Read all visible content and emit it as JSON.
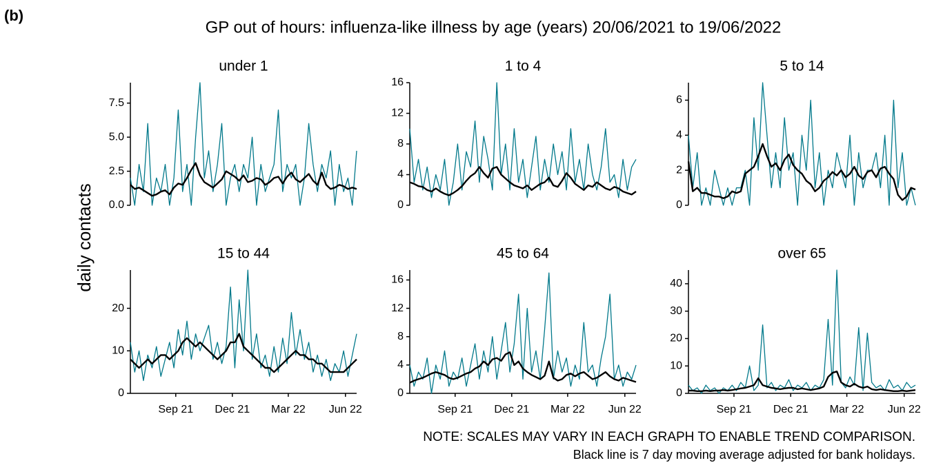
{
  "label": "(b)",
  "title": "GP out of hours: influenza-like illness by age (years) 20/06/2021 to 19/06/2022",
  "y_label": "daily contacts",
  "notes": [
    "NOTE: SCALES MAY VARY IN EACH GRAPH TO ENABLE TREND COMPARISON.",
    "Black line is 7 day moving average adjusted for bank holidays."
  ],
  "chart_data": [
    {
      "type": "line",
      "title": "under 1",
      "x": [
        0,
        7,
        14,
        21,
        28,
        35,
        42,
        49,
        56,
        63,
        70,
        77,
        84,
        91,
        98,
        105,
        112,
        119,
        126,
        133,
        140,
        147,
        154,
        161,
        168,
        175,
        182,
        189,
        196,
        203,
        210,
        217,
        224,
        231,
        238,
        245,
        252,
        259,
        266,
        273,
        280,
        287,
        294,
        301,
        308,
        315,
        322,
        329,
        336,
        343,
        350,
        357,
        364
      ],
      "xlim": [
        0,
        364
      ],
      "ylim": [
        0,
        9
      ],
      "yticks": [
        {
          "value": 0,
          "label": "0.0"
        },
        2.5,
        {
          "value": 5,
          "label": "5.0"
        },
        7.5
      ],
      "series": [
        {
          "color": "#00788a",
          "values": [
            2,
            0,
            3,
            1,
            6,
            0,
            2,
            1,
            3,
            0,
            2,
            7,
            1,
            3,
            0,
            5,
            9,
            2,
            4,
            1,
            3,
            6,
            0,
            2,
            3,
            1,
            3,
            2,
            5,
            0,
            3,
            1,
            2,
            3,
            7,
            1,
            3,
            2,
            3,
            0,
            2,
            6,
            3,
            1,
            3,
            2,
            4,
            0,
            3,
            1,
            2,
            0,
            4
          ]
        },
        {
          "color": "#000000",
          "values": [
            1.5,
            1.2,
            1.3,
            1.1,
            0.9,
            0.7,
            0.8,
            1.0,
            1.1,
            0.8,
            1.3,
            1.6,
            1.5,
            2.0,
            2.6,
            3.1,
            2.2,
            1.7,
            1.5,
            1.3,
            1.6,
            1.9,
            2.5,
            2.3,
            2.1,
            1.8,
            2.2,
            1.7,
            1.8,
            2.0,
            1.9,
            1.5,
            1.7,
            2.0,
            2.1,
            1.6,
            2.1,
            2.4,
            1.9,
            1.7,
            2.0,
            2.3,
            1.8,
            1.5,
            2.4,
            1.5,
            1.2,
            1.3,
            1.5,
            1.4,
            1.2,
            1.3,
            1.2
          ]
        }
      ]
    },
    {
      "type": "line",
      "title": "1 to 4",
      "x": [
        0,
        7,
        14,
        21,
        28,
        35,
        42,
        49,
        56,
        63,
        70,
        77,
        84,
        91,
        98,
        105,
        112,
        119,
        126,
        133,
        140,
        147,
        154,
        161,
        168,
        175,
        182,
        189,
        196,
        203,
        210,
        217,
        224,
        231,
        238,
        245,
        252,
        259,
        266,
        273,
        280,
        287,
        294,
        301,
        308,
        315,
        322,
        329,
        336,
        343,
        350,
        357,
        364
      ],
      "xlim": [
        0,
        364
      ],
      "ylim": [
        0,
        16
      ],
      "yticks": [
        0,
        4,
        8,
        12,
        16
      ],
      "series": [
        {
          "color": "#00788a",
          "values": [
            10,
            3,
            6,
            2,
            5,
            1,
            4,
            2,
            6,
            0,
            3,
            8,
            2,
            7,
            5,
            11,
            3,
            9,
            6,
            2,
            16,
            4,
            8,
            2,
            10,
            3,
            6,
            1,
            5,
            9,
            2,
            6,
            3,
            8,
            4,
            7,
            2,
            10,
            3,
            6,
            2,
            8,
            4,
            2,
            5,
            10,
            3,
            4,
            1,
            6,
            2,
            5,
            6
          ]
        },
        {
          "color": "#000000",
          "values": [
            3.0,
            2.8,
            2.5,
            2.4,
            2.0,
            1.8,
            2.2,
            1.8,
            1.5,
            1.3,
            1.6,
            2.0,
            2.5,
            3.2,
            3.8,
            4.2,
            5.0,
            4.2,
            3.6,
            4.8,
            5.0,
            4.0,
            3.5,
            3.0,
            2.6,
            2.4,
            2.2,
            2.6,
            2.0,
            2.4,
            2.8,
            3.0,
            3.6,
            2.6,
            2.4,
            3.2,
            4.2,
            3.6,
            2.8,
            2.4,
            2.0,
            2.6,
            2.4,
            3.0,
            2.6,
            2.2,
            2.0,
            2.4,
            2.2,
            1.8,
            1.6,
            1.4,
            1.8
          ]
        }
      ]
    },
    {
      "type": "line",
      "title": "5 to 14",
      "x": [
        0,
        7,
        14,
        21,
        28,
        35,
        42,
        49,
        56,
        63,
        70,
        77,
        84,
        91,
        98,
        105,
        112,
        119,
        126,
        133,
        140,
        147,
        154,
        161,
        168,
        175,
        182,
        189,
        196,
        203,
        210,
        217,
        224,
        231,
        238,
        245,
        252,
        259,
        266,
        273,
        280,
        287,
        294,
        301,
        308,
        315,
        322,
        329,
        336,
        343,
        350,
        357,
        364
      ],
      "xlim": [
        0,
        364
      ],
      "ylim": [
        0,
        7
      ],
      "yticks": [
        0,
        2,
        4,
        6
      ],
      "series": [
        {
          "color": "#00788a",
          "values": [
            4,
            1,
            3,
            0,
            1,
            0,
            2,
            1,
            0,
            1,
            0,
            1,
            1,
            2,
            0,
            5,
            2,
            7,
            4,
            1,
            3,
            1,
            5,
            2,
            3,
            0,
            4,
            2,
            6,
            1,
            3,
            0,
            2,
            1,
            3,
            2,
            1,
            4,
            0,
            3,
            1,
            2,
            2,
            3,
            1,
            4,
            0,
            6,
            1,
            3,
            0,
            1,
            0
          ]
        },
        {
          "color": "#000000",
          "values": [
            2.5,
            0.8,
            1.0,
            0.7,
            0.7,
            0.6,
            0.5,
            0.5,
            0.4,
            0.5,
            0.8,
            0.7,
            0.8,
            1.8,
            2.0,
            2.2,
            2.8,
            3.5,
            2.8,
            2.2,
            2.4,
            2.0,
            2.6,
            2.9,
            2.3,
            2.0,
            1.8,
            1.4,
            1.2,
            0.8,
            1.0,
            1.4,
            1.6,
            1.9,
            1.7,
            2.0,
            1.6,
            1.8,
            2.2,
            1.7,
            1.5,
            1.9,
            2.0,
            1.6,
            2.1,
            2.2,
            1.8,
            1.5,
            0.6,
            0.3,
            0.5,
            1.0,
            0.9
          ]
        }
      ]
    },
    {
      "type": "line",
      "title": "15 to 44",
      "x": [
        0,
        7,
        14,
        21,
        28,
        35,
        42,
        49,
        56,
        63,
        70,
        77,
        84,
        91,
        98,
        105,
        112,
        119,
        126,
        133,
        140,
        147,
        154,
        161,
        168,
        175,
        182,
        189,
        196,
        203,
        210,
        217,
        224,
        231,
        238,
        245,
        252,
        259,
        266,
        273,
        280,
        287,
        294,
        301,
        308,
        315,
        322,
        329,
        336,
        343,
        350,
        357,
        364
      ],
      "xlim": [
        0,
        364
      ],
      "ylim": [
        0,
        29
      ],
      "xticks": [
        {
          "value": 73,
          "label": "Sep 21"
        },
        {
          "value": 164,
          "label": "Dec 21"
        },
        {
          "value": 254,
          "label": "Mar 22"
        },
        {
          "value": 346,
          "label": "Jun 22"
        }
      ],
      "yticks": [
        0,
        10,
        20
      ],
      "series": [
        {
          "color": "#00788a",
          "values": [
            12,
            5,
            10,
            3,
            9,
            6,
            11,
            4,
            8,
            12,
            6,
            15,
            9,
            17,
            8,
            14,
            10,
            13,
            16,
            8,
            12,
            7,
            11,
            25,
            6,
            22,
            10,
            29,
            8,
            14,
            6,
            9,
            4,
            11,
            5,
            13,
            7,
            19,
            9,
            15,
            8,
            12,
            5,
            9,
            4,
            8,
            3,
            7,
            5,
            10,
            4,
            9,
            14
          ]
        },
        {
          "color": "#000000",
          "values": [
            8,
            7,
            6,
            7,
            8,
            7,
            8,
            9,
            9,
            8,
            9,
            10,
            12,
            13,
            12,
            11,
            12,
            11,
            10,
            9,
            8,
            9,
            10,
            12,
            12,
            14,
            11,
            10,
            9,
            8,
            7,
            6,
            6,
            5,
            6,
            7,
            8,
            9,
            10,
            9,
            9,
            8,
            8,
            7,
            7,
            6,
            5,
            5,
            5,
            5,
            6,
            7,
            8
          ]
        }
      ]
    },
    {
      "type": "line",
      "title": "45 to 64",
      "x": [
        0,
        7,
        14,
        21,
        28,
        35,
        42,
        49,
        56,
        63,
        70,
        77,
        84,
        91,
        98,
        105,
        112,
        119,
        126,
        133,
        140,
        147,
        154,
        161,
        168,
        175,
        182,
        189,
        196,
        203,
        210,
        217,
        224,
        231,
        238,
        245,
        252,
        259,
        266,
        273,
        280,
        287,
        294,
        301,
        308,
        315,
        322,
        329,
        336,
        343,
        350,
        357,
        364
      ],
      "xlim": [
        0,
        364
      ],
      "ylim": [
        0,
        17.4
      ],
      "xticks": [
        {
          "value": 73,
          "label": "Sep 21"
        },
        {
          "value": 164,
          "label": "Dec 21"
        },
        {
          "value": 254,
          "label": "Mar 22"
        },
        {
          "value": 346,
          "label": "Jun 22"
        }
      ],
      "yticks": [
        0,
        4,
        8,
        12,
        16
      ],
      "series": [
        {
          "color": "#00788a",
          "values": [
            4,
            1,
            3,
            2,
            5,
            0,
            4,
            2,
            6,
            1,
            3,
            2,
            5,
            1,
            4,
            7,
            2,
            6,
            3,
            8,
            2,
            6,
            10,
            3,
            7,
            14,
            2,
            12,
            3,
            6,
            2,
            9,
            17,
            2,
            6,
            3,
            5,
            1,
            4,
            2,
            10,
            3,
            4,
            1,
            5,
            8,
            14,
            2,
            4,
            1,
            3,
            2,
            4
          ]
        },
        {
          "color": "#000000",
          "values": [
            1.5,
            1.8,
            2.0,
            2.2,
            2.5,
            2.8,
            3.0,
            2.8,
            2.6,
            2.2,
            2.0,
            2.2,
            2.5,
            2.8,
            3.0,
            3.5,
            3.8,
            4.5,
            4.0,
            4.8,
            5.0,
            4.6,
            5.5,
            5.8,
            4.0,
            4.5,
            3.5,
            3.0,
            2.6,
            2.3,
            2.0,
            2.5,
            4.5,
            2.2,
            1.8,
            2.0,
            2.6,
            2.8,
            2.4,
            2.8,
            3.0,
            2.5,
            2.0,
            2.2,
            2.6,
            3.0,
            2.4,
            2.0,
            1.8,
            2.2,
            2.0,
            1.8,
            1.6
          ]
        }
      ]
    },
    {
      "type": "line",
      "title": "over 65",
      "x": [
        0,
        7,
        14,
        21,
        28,
        35,
        42,
        49,
        56,
        63,
        70,
        77,
        84,
        91,
        98,
        105,
        112,
        119,
        126,
        133,
        140,
        147,
        154,
        161,
        168,
        175,
        182,
        189,
        196,
        203,
        210,
        217,
        224,
        231,
        238,
        245,
        252,
        259,
        266,
        273,
        280,
        287,
        294,
        301,
        308,
        315,
        322,
        329,
        336,
        343,
        350,
        357,
        364
      ],
      "xlim": [
        0,
        364
      ],
      "ylim": [
        0,
        45
      ],
      "xticks": [
        {
          "value": 73,
          "label": "Sep 21"
        },
        {
          "value": 164,
          "label": "Dec 21"
        },
        {
          "value": 254,
          "label": "Mar 22"
        },
        {
          "value": 346,
          "label": "Jun 22"
        }
      ],
      "yticks": [
        0,
        10,
        20,
        30,
        40
      ],
      "series": [
        {
          "color": "#00788a",
          "values": [
            3,
            1,
            2,
            0,
            3,
            1,
            2,
            0,
            2,
            1,
            3,
            1,
            4,
            2,
            10,
            1,
            3,
            25,
            2,
            4,
            1,
            3,
            2,
            5,
            1,
            3,
            2,
            4,
            1,
            3,
            2,
            5,
            27,
            3,
            45,
            4,
            2,
            6,
            3,
            24,
            1,
            22,
            4,
            2,
            3,
            1,
            5,
            2,
            3,
            1,
            4,
            2,
            3
          ]
        },
        {
          "color": "#000000",
          "values": [
            1,
            1,
            0.8,
            0.8,
            1,
            0.8,
            1,
            1,
            1.2,
            1,
            1.2,
            1.5,
            1.8,
            2,
            2.5,
            3,
            5.5,
            3,
            2.5,
            2,
            1.8,
            1.5,
            1.8,
            2,
            2,
            1.5,
            1.8,
            1.5,
            1.2,
            1.5,
            1.8,
            2.5,
            6,
            7.5,
            8,
            4,
            3,
            2.5,
            3.5,
            2.5,
            2,
            2.5,
            1.5,
            1.2,
            1.5,
            1.2,
            1,
            0.8,
            0.8,
            1,
            0.8,
            1,
            1.2
          ]
        }
      ]
    }
  ]
}
